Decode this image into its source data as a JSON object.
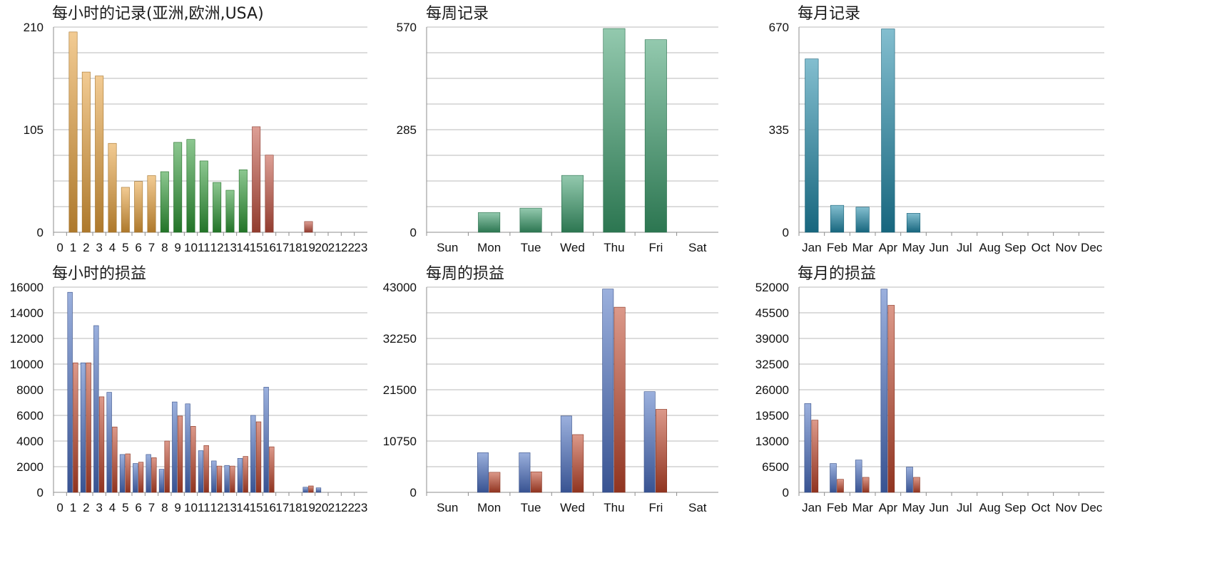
{
  "chart_data": [
    {
      "type": "bar",
      "title": "每小时的记录(亚洲,欧洲,USA)",
      "categories": [
        "0",
        "1",
        "2",
        "3",
        "4",
        "5",
        "6",
        "7",
        "8",
        "9",
        "10",
        "11",
        "12",
        "13",
        "14",
        "15",
        "16",
        "17",
        "18",
        "19",
        "20",
        "21",
        "22",
        "23"
      ],
      "values": [
        0,
        205,
        164,
        160,
        91,
        46,
        52,
        58,
        62,
        92,
        95,
        73,
        51,
        43,
        64,
        108,
        79,
        0,
        0,
        11,
        0,
        0,
        0,
        0
      ],
      "bar_colors": [
        "#e8a13a",
        "#e8a13a",
        "#e8a13a",
        "#e8a13a",
        "#e8a13a",
        "#e8a13a",
        "#e8a13a",
        "#e8a13a",
        "#2e9a35",
        "#2e9a35",
        "#2e9a35",
        "#2e9a35",
        "#2e9a35",
        "#2e9a35",
        "#2e9a35",
        "#c2503f",
        "#c2503f",
        "#c2503f",
        "#c2503f",
        "#c2503f",
        "#c2503f",
        "#c2503f",
        "#c2503f",
        "#c2503f"
      ],
      "yticks": [
        0,
        105,
        210
      ],
      "ylim": [
        0,
        210
      ],
      "grid": true
    },
    {
      "type": "bar",
      "title": "每周记录",
      "categories": [
        "Sun",
        "Mon",
        "Tue",
        "Wed",
        "Thu",
        "Fri",
        "Sat"
      ],
      "values": [
        0,
        55,
        67,
        158,
        566,
        535,
        0
      ],
      "color": "#3b9d6c",
      "yticks": [
        0,
        285,
        570
      ],
      "ylim": [
        0,
        570
      ],
      "grid": true
    },
    {
      "type": "bar",
      "title": "每月记录",
      "categories": [
        "Jan",
        "Feb",
        "Mar",
        "Apr",
        "May",
        "Jun",
        "Jul",
        "Aug",
        "Sep",
        "Oct",
        "Nov",
        "Dec"
      ],
      "values": [
        566,
        88,
        82,
        664,
        62,
        0,
        0,
        0,
        0,
        0,
        0,
        0
      ],
      "color": "#1e88a8",
      "yticks": [
        0,
        335,
        670
      ],
      "ylim": [
        0,
        670
      ],
      "grid": true
    },
    {
      "type": "bar",
      "title": "每小时的损益",
      "categories": [
        "0",
        "1",
        "2",
        "3",
        "4",
        "5",
        "6",
        "7",
        "8",
        "9",
        "10",
        "11",
        "12",
        "13",
        "14",
        "15",
        "16",
        "17",
        "18",
        "19",
        "20",
        "21",
        "22",
        "23"
      ],
      "series": [
        {
          "values": [
            0,
            15600,
            10100,
            13000,
            7800,
            2950,
            2250,
            2950,
            1800,
            7050,
            6900,
            3250,
            2450,
            2100,
            2650,
            6000,
            8200,
            0,
            0,
            400,
            350,
            0,
            0,
            0
          ],
          "color": "#4a6fc2"
        },
        {
          "values": [
            0,
            10100,
            10100,
            7450,
            5100,
            3000,
            2350,
            2700,
            4000,
            5950,
            5150,
            3650,
            2050,
            2050,
            2800,
            5500,
            3550,
            0,
            0,
            500,
            0,
            0,
            0,
            0
          ],
          "color": "#c0452a"
        }
      ],
      "yticks": [
        0,
        2000,
        4000,
        6000,
        8000,
        10000,
        12000,
        14000,
        16000
      ],
      "ylim": [
        0,
        16000
      ],
      "grid": true
    },
    {
      "type": "bar",
      "title": "每周的损益",
      "categories": [
        "Sun",
        "Mon",
        "Tue",
        "Wed",
        "Thu",
        "Fri",
        "Sat"
      ],
      "series": [
        {
          "values": [
            0,
            8300,
            8300,
            16000,
            42600,
            21100,
            0
          ],
          "color": "#4a6fc2"
        },
        {
          "values": [
            0,
            4200,
            4300,
            12100,
            38800,
            17400,
            0
          ],
          "color": "#c0452a"
        }
      ],
      "yticks": [
        0,
        10750,
        21500,
        32250,
        43000
      ],
      "ylim": [
        0,
        43000
      ],
      "grid": true
    },
    {
      "type": "bar",
      "title": "每月的损益",
      "categories": [
        "Jan",
        "Feb",
        "Mar",
        "Apr",
        "May",
        "Jun",
        "Jul",
        "Aug",
        "Sep",
        "Oct",
        "Nov",
        "Dec"
      ],
      "series": [
        {
          "values": [
            22500,
            7300,
            8200,
            51500,
            6400,
            0,
            0,
            0,
            0,
            0,
            0,
            0
          ],
          "color": "#4a6fc2"
        },
        {
          "values": [
            18300,
            3300,
            3800,
            47400,
            3800,
            0,
            0,
            0,
            0,
            0,
            0,
            0
          ],
          "color": "#c0452a"
        }
      ],
      "yticks": [
        0,
        6500,
        13000,
        19500,
        26000,
        32500,
        39000,
        45500,
        52000
      ],
      "ylim": [
        0,
        52000
      ],
      "grid": true
    }
  ]
}
